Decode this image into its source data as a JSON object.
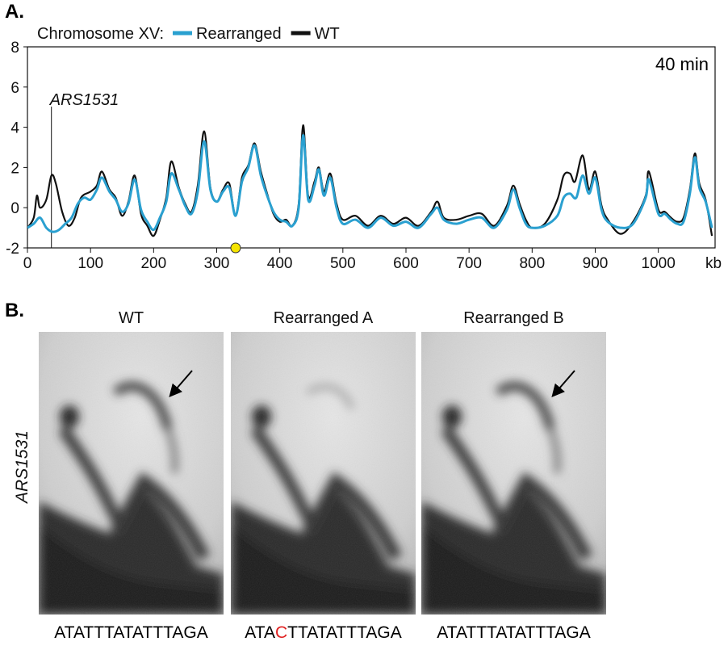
{
  "panel_a": {
    "letter": "A.",
    "legend_title": "Chromosome XV:",
    "timepoint": "40 min",
    "annotation": "ARS1531",
    "x_unit": "kb"
  },
  "chart_data": {
    "type": "line",
    "xlabel": "kb",
    "ylabel": "",
    "xlim": [
      0,
      1090
    ],
    "ylim": [
      -2,
      8
    ],
    "x_ticks": [
      0,
      100,
      200,
      300,
      400,
      500,
      600,
      700,
      800,
      900,
      1000
    ],
    "y_ticks": [
      -2,
      0,
      2,
      4,
      6,
      8
    ],
    "annotations": [
      {
        "text": "ARS1531",
        "x": 38
      },
      {
        "text": "40 min"
      }
    ],
    "marker": {
      "x": 330,
      "y": -2,
      "color": "#f5e400"
    },
    "series": [
      {
        "name": "Rearranged",
        "color": "#2aa0d0",
        "x": [
          0,
          10,
          20,
          30,
          40,
          50,
          60,
          70,
          80,
          90,
          100,
          110,
          118,
          130,
          140,
          150,
          160,
          170,
          180,
          190,
          200,
          210,
          220,
          228,
          240,
          250,
          260,
          270,
          280,
          290,
          300,
          310,
          320,
          330,
          340,
          350,
          360,
          370,
          380,
          390,
          400,
          410,
          420,
          430,
          437,
          445,
          455,
          462,
          470,
          480,
          490,
          500,
          520,
          540,
          560,
          580,
          600,
          620,
          640,
          650,
          660,
          680,
          700,
          720,
          740,
          760,
          770,
          780,
          790,
          800,
          820,
          840,
          850,
          860,
          870,
          880,
          890,
          900,
          910,
          920,
          940,
          960,
          980,
          985,
          1000,
          1010,
          1020,
          1030,
          1040,
          1050,
          1058,
          1065,
          1075,
          1085
        ],
        "y": [
          -1.0,
          -0.8,
          -0.5,
          -1.0,
          -1.2,
          -1.1,
          -0.8,
          -0.5,
          0.2,
          0.5,
          0.4,
          0.9,
          1.5,
          0.8,
          0.4,
          -0.2,
          0.2,
          1.4,
          -0.1,
          -0.7,
          -1.1,
          -0.5,
          0.3,
          1.7,
          0.9,
          0.1,
          -0.3,
          0.8,
          3.3,
          0.9,
          0.3,
          0.8,
          1.0,
          -0.4,
          1.3,
          2.0,
          3.1,
          1.6,
          0.6,
          -0.2,
          -0.6,
          -0.7,
          -0.9,
          0.0,
          3.6,
          0.4,
          1.1,
          1.9,
          0.6,
          1.5,
          0.0,
          -0.8,
          -0.6,
          -1.0,
          -0.5,
          -0.9,
          -0.7,
          -1.0,
          -0.3,
          0.0,
          -0.6,
          -0.8,
          -0.6,
          -0.5,
          -1.0,
          -0.1,
          0.9,
          0.0,
          -0.8,
          -1.0,
          -0.9,
          -0.4,
          0.5,
          0.7,
          0.5,
          1.6,
          0.7,
          1.5,
          -0.1,
          -0.7,
          -1.0,
          -0.8,
          0.5,
          1.4,
          -0.3,
          -0.3,
          -0.6,
          -0.8,
          -0.7,
          0.7,
          2.5,
          1.0,
          0.3,
          -1.0
        ]
      },
      {
        "name": "WT",
        "color": "#111111",
        "x": [
          0,
          10,
          15,
          20,
          30,
          38,
          45,
          55,
          65,
          75,
          85,
          100,
          110,
          118,
          130,
          140,
          150,
          160,
          170,
          180,
          190,
          200,
          210,
          220,
          228,
          240,
          250,
          260,
          270,
          280,
          290,
          300,
          310,
          320,
          330,
          340,
          350,
          360,
          370,
          380,
          390,
          400,
          410,
          420,
          430,
          437,
          445,
          455,
          462,
          470,
          480,
          490,
          500,
          520,
          540,
          560,
          580,
          600,
          620,
          640,
          650,
          660,
          680,
          700,
          720,
          740,
          760,
          770,
          780,
          790,
          800,
          820,
          840,
          850,
          860,
          868,
          880,
          890,
          900,
          910,
          920,
          940,
          960,
          980,
          985,
          1000,
          1010,
          1020,
          1030,
          1040,
          1050,
          1058,
          1065,
          1075,
          1085
        ],
        "y": [
          -1.0,
          -0.5,
          0.6,
          0.0,
          0.4,
          1.6,
          1.2,
          -0.2,
          -0.9,
          -0.5,
          0.5,
          0.8,
          1.1,
          1.8,
          0.9,
          0.5,
          -0.4,
          0.3,
          1.6,
          -0.3,
          -0.9,
          -1.4,
          -0.6,
          0.5,
          2.3,
          1.0,
          0.2,
          -0.2,
          1.1,
          3.8,
          1.0,
          0.3,
          0.9,
          1.2,
          -0.4,
          1.5,
          2.1,
          3.2,
          1.8,
          0.7,
          -0.3,
          -0.7,
          -0.6,
          -0.9,
          0.2,
          4.1,
          0.6,
          1.3,
          2.0,
          0.8,
          1.7,
          0.2,
          -0.6,
          -0.4,
          -0.9,
          -0.4,
          -0.8,
          -0.5,
          -0.9,
          -0.2,
          0.3,
          -0.5,
          -0.6,
          -0.4,
          -0.3,
          -0.9,
          0.1,
          1.1,
          0.2,
          -0.6,
          -1.0,
          -0.8,
          0.4,
          1.6,
          1.7,
          1.3,
          2.6,
          0.9,
          1.8,
          0.1,
          -0.6,
          -1.3,
          -0.7,
          0.6,
          1.8,
          -0.1,
          -0.2,
          -0.5,
          -0.7,
          -0.5,
          0.9,
          2.7,
          1.2,
          0.4,
          -1.4
        ]
      }
    ]
  },
  "panel_b": {
    "letter": "B.",
    "side_label": "ARS1531",
    "blots": [
      {
        "title": "WT",
        "seq_pre": "ATATTTATATTTAGA",
        "seq_mut": "",
        "seq_post": "",
        "has_arrow": true
      },
      {
        "title": "Rearranged A",
        "seq_pre": "ATA",
        "seq_mut": "C",
        "seq_post": "TTATATTTAGA",
        "has_arrow": false
      },
      {
        "title": "Rearranged B",
        "seq_pre": "ATATTTATATTTAGA",
        "seq_mut": "",
        "seq_post": "",
        "has_arrow": true
      }
    ],
    "mutation_color": "#e02020"
  }
}
